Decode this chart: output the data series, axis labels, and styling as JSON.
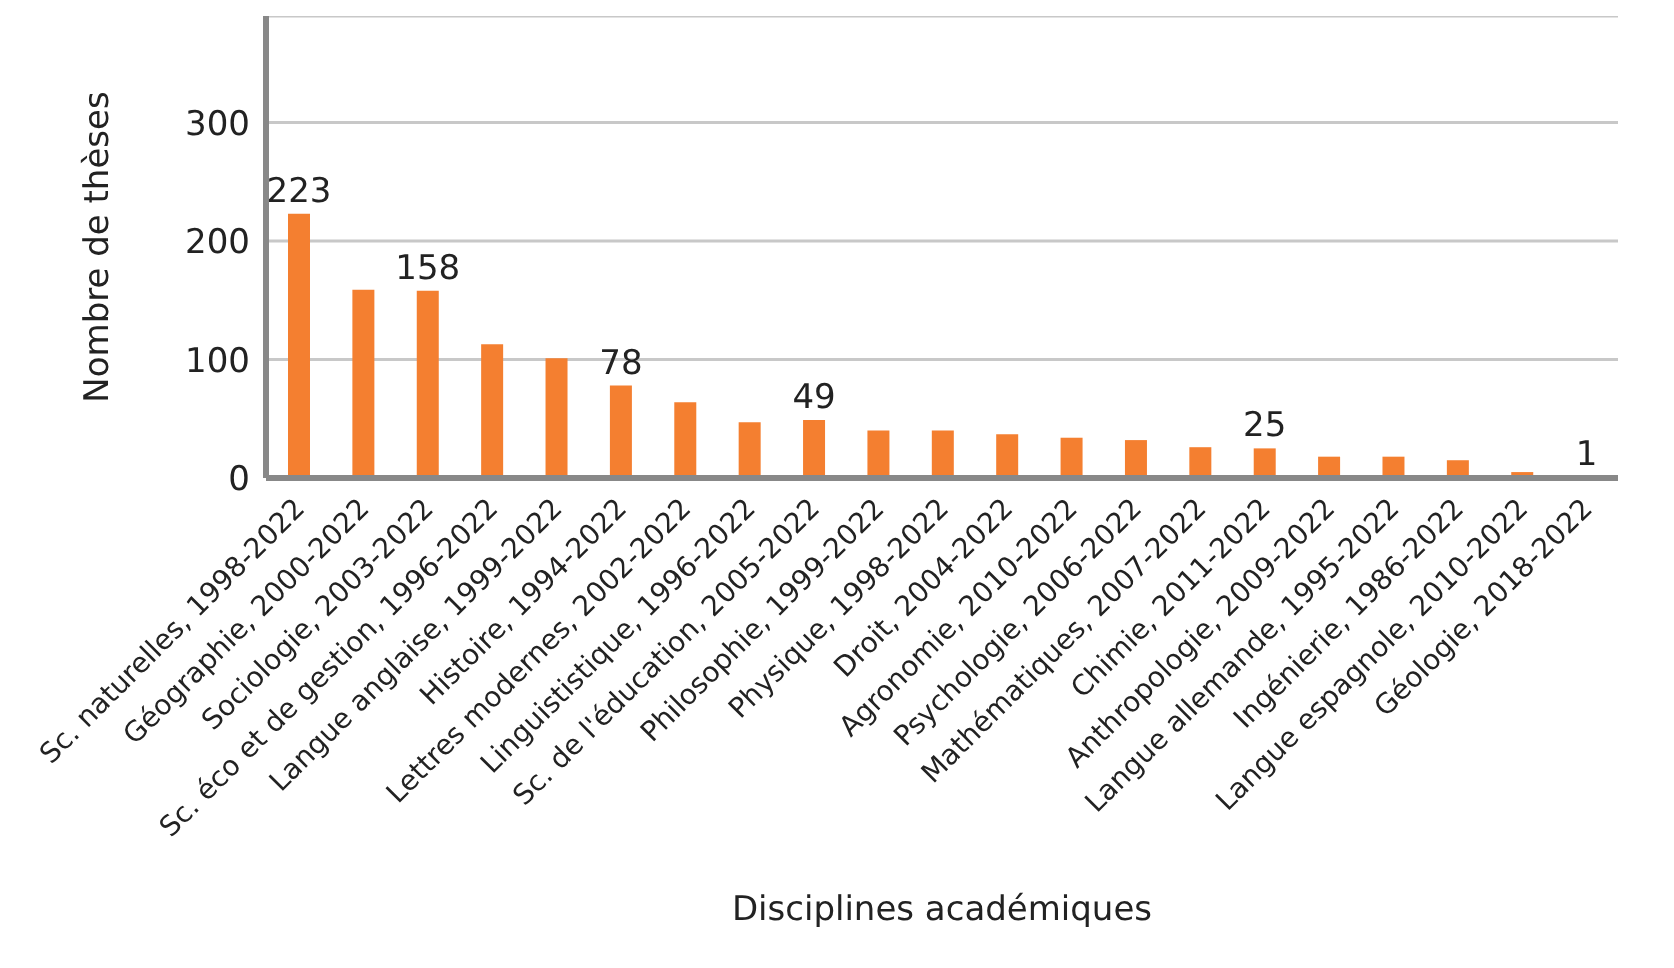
{
  "chart_data": {
    "type": "bar",
    "xlabel": "Disciplines académiques",
    "ylabel": "Nombre de thèses",
    "categories": [
      "Sc. naturelles, 1998-2022",
      "Géographie, 2000-2022",
      "Sociologie, 2003-2022",
      "Sc. éco et de gestion, 1996-2022",
      "Langue anglaise, 1999-2022",
      "Histoire, 1994-2022",
      "Lettres modernes, 2002-2022",
      "Linguististique, 1996-2022",
      "Sc. de l'éducation, 2005-2022",
      "Philosophie, 1999-2022",
      "Physique, 1998-2022",
      "Droit, 2004-2022",
      "Agronomie, 2010-2022",
      "Psychologie, 2006-2022",
      "Mathématiques, 2007-2022",
      "Chimie, 2011-2022",
      "Anthropologie, 2009-2022",
      "Langue allemande, 1995-2022",
      "Ingénierie, 1986-2022",
      "Langue espagnole, 2010-2022",
      "Géologie, 2018-2022"
    ],
    "values": [
      223,
      159,
      158,
      113,
      101,
      78,
      64,
      47,
      49,
      40,
      40,
      37,
      34,
      32,
      26,
      25,
      18,
      18,
      15,
      5,
      1
    ],
    "value_labels": [
      "223",
      null,
      "158",
      null,
      null,
      "78",
      null,
      null,
      "49",
      null,
      null,
      null,
      null,
      null,
      null,
      "25",
      null,
      null,
      null,
      null,
      "1"
    ],
    "color": "#f47f30",
    "ylim": [
      0,
      390
    ],
    "yticks": [
      0,
      100,
      200,
      300
    ],
    "grid": "y"
  }
}
